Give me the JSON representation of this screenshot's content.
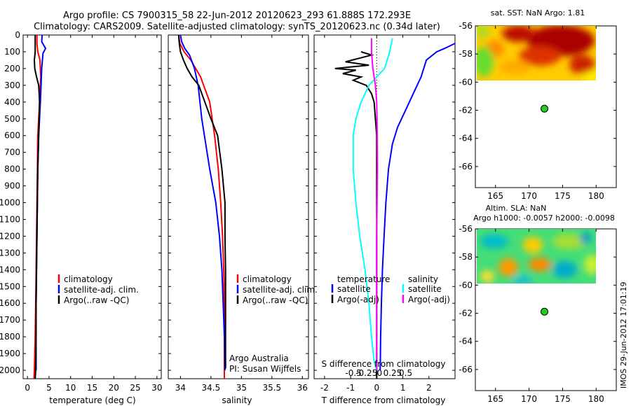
{
  "title": {
    "line1": "Argo profile: CS 7900315_58 22-Jun-2012 20120623_293 61.888S 172.293E",
    "line2": "Climatology: CARS2009. Satellite-adjusted climatology: synTS_20120623.nc (0.34d later)"
  },
  "stamp": "IMOS 29-Jun-2012 17:01:19",
  "chart_data": [
    {
      "id": "temperature",
      "type": "line",
      "xlabel": "temperature (deg C)",
      "ylabel": "",
      "xlim": [
        -1,
        31
      ],
      "ylim": [
        2050,
        0
      ],
      "xticks": [
        0,
        5,
        10,
        15,
        20,
        25,
        30
      ],
      "yticks": [
        0,
        100,
        200,
        300,
        400,
        500,
        600,
        700,
        800,
        900,
        1000,
        1100,
        1200,
        1300,
        1400,
        1500,
        1600,
        1700,
        1800,
        1900,
        2000
      ],
      "legend": [
        "climatology",
        "satellite-adj. clim.",
        "Argo(..raw -QC)"
      ],
      "series": [
        {
          "name": "climatology",
          "color": "#ff0000",
          "x": [
            2.2,
            2.2,
            2.4,
            2.9,
            3.1,
            2.8,
            2.4,
            2.3,
            2.2,
            2.1,
            2.0,
            1.9,
            1.8,
            1.6,
            1.5
          ],
          "y": [
            0,
            50,
            100,
            150,
            250,
            400,
            600,
            800,
            1000,
            1200,
            1400,
            1600,
            1800,
            2000,
            2050
          ]
        },
        {
          "name": "satellite-adj. clim.",
          "color": "#0000ff",
          "x": [
            3.4,
            3.3,
            4.2,
            3.6,
            3.3,
            3.0,
            2.6,
            2.4,
            2.3,
            2.2,
            2.1,
            2.0,
            2.0,
            2.0
          ],
          "y": [
            0,
            40,
            80,
            110,
            200,
            400,
            600,
            800,
            1000,
            1200,
            1400,
            1600,
            1800,
            2000
          ]
        },
        {
          "name": "Argo(..raw -QC)",
          "color": "#000000",
          "x": [
            1.8,
            1.8,
            1.6,
            1.7,
            2.1,
            2.6,
            2.8,
            2.6,
            2.4,
            2.3,
            2.2,
            2.1,
            2.0,
            2.0,
            1.9,
            1.8
          ],
          "y": [
            0,
            100,
            150,
            200,
            250,
            300,
            400,
            600,
            800,
            1000,
            1200,
            1400,
            1600,
            1800,
            2000,
            2050
          ]
        }
      ]
    },
    {
      "id": "salinity",
      "type": "line",
      "xlabel": "salinity",
      "ylabel": "",
      "xlim": [
        33.8,
        36.1
      ],
      "ylim": [
        2050,
        0
      ],
      "xticks": [
        34,
        34.5,
        35,
        35.5,
        36
      ],
      "legend": [
        "climatology",
        "satellite-adj. clim.",
        "Argo(..raw -QC)"
      ],
      "annotation": [
        "Argo Australia",
        "PI: Susan Wijffels"
      ],
      "series": [
        {
          "name": "climatology",
          "color": "#ff0000",
          "x": [
            33.97,
            33.99,
            34.06,
            34.17,
            34.33,
            34.48,
            34.56,
            34.62,
            34.66,
            34.69,
            34.71,
            34.72,
            34.72,
            34.72
          ],
          "y": [
            0,
            50,
            100,
            150,
            250,
            400,
            600,
            800,
            1000,
            1200,
            1400,
            1600,
            1800,
            2050
          ]
        },
        {
          "name": "satellite-adj. clim.",
          "color": "#0000ff",
          "x": [
            34.0,
            34.02,
            34.07,
            34.15,
            34.23,
            34.29,
            34.35,
            34.48,
            34.58,
            34.64,
            34.68,
            34.7,
            34.72,
            34.73
          ],
          "y": [
            0,
            40,
            80,
            120,
            200,
            300,
            500,
            800,
            1000,
            1200,
            1400,
            1600,
            1800,
            2000
          ]
        },
        {
          "name": "Argo(..raw -QC)",
          "color": "#000000",
          "x": [
            33.97,
            33.98,
            34.0,
            34.05,
            34.11,
            34.19,
            34.3,
            34.4,
            34.5,
            34.61,
            34.68,
            34.73,
            34.73,
            34.74,
            34.74,
            34.74,
            34.74
          ],
          "y": [
            0,
            50,
            100,
            150,
            200,
            250,
            300,
            400,
            500,
            600,
            800,
            1000,
            1200,
            1400,
            1600,
            1800,
            1990
          ]
        }
      ]
    },
    {
      "id": "difference",
      "type": "line",
      "xlabel": "T difference from climatology",
      "x2label": "S difference from climatology",
      "ylabel": "",
      "xlim": [
        -2.4,
        3.0
      ],
      "ylim": [
        2050,
        0
      ],
      "xticks": [
        -2,
        -1,
        0,
        1,
        2
      ],
      "x2ticks": [
        "-0.5",
        "-0.25",
        "0",
        "0.25",
        "0.5"
      ],
      "legend_left_title": "temperature",
      "legend_right_title": "salinity",
      "legend": [
        "satellite",
        "Argo(-adj)",
        "satellite",
        "Argo(-adj)"
      ],
      "series": [
        {
          "name": "satellite",
          "color": "#0000ff",
          "x": [
            3.0,
            2.8,
            2.6,
            2.3,
            1.9,
            1.7,
            1.4,
            1.1,
            0.8,
            0.6,
            0.45,
            0.35,
            0.28,
            0.22,
            0.18,
            0.15,
            0.14,
            0.13
          ],
          "y": [
            50,
            65,
            80,
            100,
            150,
            250,
            350,
            450,
            550,
            650,
            800,
            1000,
            1200,
            1400,
            1600,
            1800,
            1950,
            2000
          ]
        },
        {
          "name": "Argo(-adj)",
          "color": "#000000",
          "x": [
            -0.6,
            -0.2,
            -1.2,
            -0.3,
            -1.6,
            -0.8,
            -1.3,
            -0.6,
            -0.9,
            -0.4,
            -0.2,
            -0.1,
            0.0,
            0.0,
            0.0,
            0.0,
            0.0
          ],
          "y": [
            100,
            120,
            160,
            180,
            200,
            210,
            230,
            250,
            270,
            300,
            350,
            400,
            600,
            1000,
            1400,
            1800,
            2050
          ]
        },
        {
          "name": "satellite",
          "color": "#00ffff",
          "x": [
            0.6,
            0.5,
            0.3,
            -0.3,
            -0.6,
            -0.8,
            -0.9,
            -0.9,
            -0.8,
            -0.65,
            -0.45,
            -0.3,
            -0.2,
            -0.1,
            0.0
          ],
          "y": [
            20,
            100,
            200,
            300,
            400,
            500,
            600,
            800,
            1000,
            1200,
            1400,
            1600,
            1800,
            1950,
            2000
          ]
        },
        {
          "name": "Argo(-adj)",
          "color": "#ff00ff",
          "x": [
            -0.2,
            -0.2,
            -0.15,
            -0.05,
            0.0,
            0.02,
            0.03,
            0.0,
            0.0,
            0.0
          ],
          "y": [
            20,
            100,
            200,
            300,
            400,
            600,
            800,
            1200,
            1600,
            2000
          ]
        }
      ]
    },
    {
      "id": "sst-map",
      "type": "heatmap",
      "title": "sat. SST: NaN Argo: 1.81",
      "xlim": [
        162,
        183
      ],
      "ylim": [
        -67.5,
        -56
      ],
      "xticks": [
        165,
        170,
        175,
        180
      ],
      "yticks": [
        -56,
        -58,
        -60,
        -62,
        -64,
        -66
      ],
      "marker": {
        "lon": 172.293,
        "lat": -61.888
      }
    },
    {
      "id": "sla-map",
      "type": "heatmap",
      "title": "Altim. SLA: NaN",
      "subtitle": "Argo h1000: -0.0057 h2000: -0.0098",
      "xlim": [
        162,
        183
      ],
      "ylim": [
        -67.5,
        -56
      ],
      "xticks": [
        165,
        170,
        175,
        180
      ],
      "yticks": [
        -56,
        -58,
        -60,
        -62,
        -64,
        -66
      ],
      "marker": {
        "lon": 172.293,
        "lat": -61.888
      }
    }
  ]
}
